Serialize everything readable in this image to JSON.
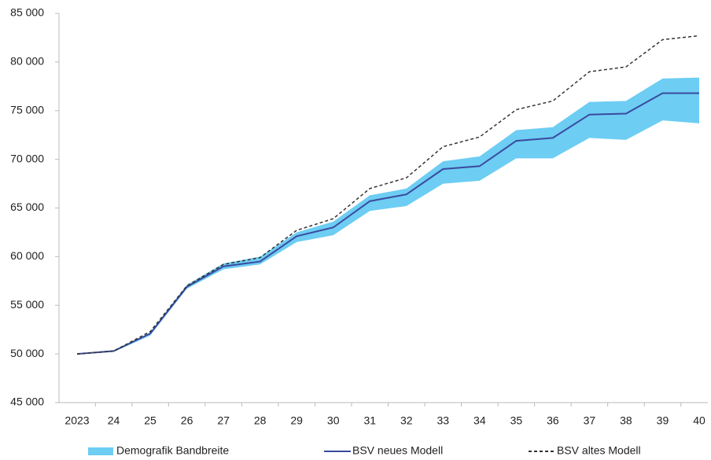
{
  "chart_data": {
    "type": "line",
    "categories": [
      "2023",
      "24",
      "25",
      "26",
      "27",
      "28",
      "29",
      "30",
      "31",
      "32",
      "33",
      "34",
      "35",
      "36",
      "37",
      "38",
      "39",
      "40"
    ],
    "ylim": [
      45000,
      85000
    ],
    "yticks": [
      {
        "value": 45000,
        "label": "45 000"
      },
      {
        "value": 50000,
        "label": "50 000"
      },
      {
        "value": 55000,
        "label": "55 000"
      },
      {
        "value": 60000,
        "label": "60 000"
      },
      {
        "value": 65000,
        "label": "65 000"
      },
      {
        "value": 70000,
        "label": "70 000"
      },
      {
        "value": 75000,
        "label": "75 000"
      },
      {
        "value": 80000,
        "label": "80 000"
      },
      {
        "value": 85000,
        "label": "85 000"
      }
    ],
    "series": [
      {
        "name": "Demografik Bandbreite",
        "color": "#6dcdf3",
        "style": "band",
        "high": [
          50000,
          50300,
          52200,
          57100,
          59300,
          60000,
          62500,
          63600,
          66300,
          67000,
          69800,
          70300,
          73000,
          73300,
          75900,
          76000,
          78300,
          78400
        ],
        "low": [
          50000,
          50200,
          51900,
          56700,
          58700,
          59200,
          61500,
          62200,
          64700,
          65200,
          67500,
          67800,
          70100,
          70100,
          72200,
          72000,
          74000,
          73700
        ]
      },
      {
        "name": "BSV neues Modell",
        "color": "#3b4a9e",
        "style": "solid",
        "values": [
          50000,
          50300,
          52100,
          56900,
          59000,
          59500,
          62100,
          63000,
          65700,
          66400,
          69000,
          69300,
          71900,
          72200,
          74600,
          74700,
          76800,
          76800
        ]
      },
      {
        "name": "BSV altes Modell",
        "color": "#333333",
        "style": "dashed",
        "values": [
          50000,
          50300,
          52300,
          57000,
          59200,
          59900,
          62700,
          63900,
          67000,
          68100,
          71300,
          72300,
          75100,
          76000,
          79000,
          79500,
          82300,
          82700
        ]
      }
    ]
  }
}
